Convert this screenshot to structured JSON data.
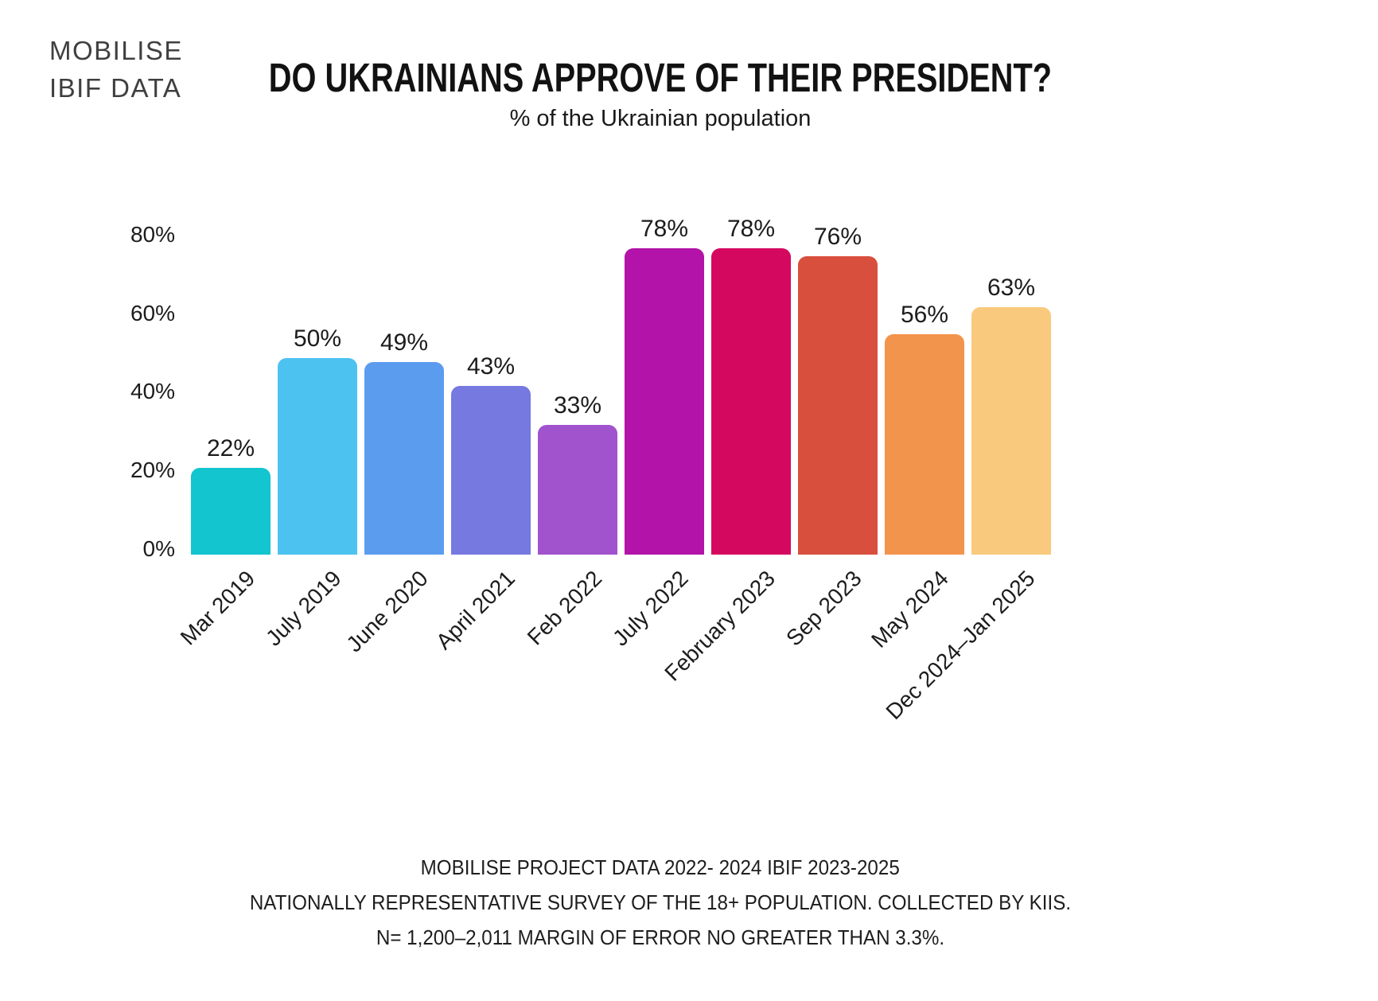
{
  "branding": {
    "line1": "MOBILISE",
    "line2": "IBIF DATA"
  },
  "header": {
    "title": "DO UKRAINIANS APPROVE OF THEIR PRESIDENT?",
    "subtitle": "% of the Ukrainian population"
  },
  "chart_data": {
    "type": "bar",
    "title": "DO UKRAINIANS APPROVE OF THEIR PRESIDENT?",
    "subtitle": "% of the Ukrainian population",
    "categories": [
      "Mar 2019",
      "July 2019",
      "June 2020",
      "April 2021",
      "Feb 2022",
      "July 2022",
      "February 2023",
      "Sep 2023",
      "May 2024",
      "Dec 2024–Jan 2025"
    ],
    "values": [
      22,
      50,
      49,
      43,
      33,
      78,
      78,
      76,
      56,
      63
    ],
    "value_labels": [
      "22%",
      "50%",
      "49%",
      "43%",
      "33%",
      "78%",
      "78%",
      "76%",
      "56%",
      "63%"
    ],
    "bar_colors": [
      "#12c5cf",
      "#4cc2f1",
      "#5c9cef",
      "#7679df",
      "#a153ce",
      "#b313a8",
      "#d5085f",
      "#d94f3d",
      "#f3944c",
      "#f9ca7d"
    ],
    "xlabel": "",
    "ylabel": "",
    "ylim": [
      0,
      80
    ],
    "yticks": [
      0,
      20,
      40,
      60,
      80
    ],
    "ytick_labels": [
      "0%",
      "20%",
      "40%",
      "60%",
      "80%"
    ],
    "grid": false,
    "legend": false,
    "axis_text_color": "#1c1c1c"
  },
  "footer": {
    "lines": [
      "MOBILISE PROJECT DATA 2022- 2024 IBIF 2023-2025",
      "NATIONALLY REPRESENTATIVE SURVEY  OF THE 18+ POPULATION. COLLECTED BY KIIS.",
      "N= 1,200–2,011 MARGIN OF ERROR NO GREATER THAN 3.3%."
    ]
  }
}
